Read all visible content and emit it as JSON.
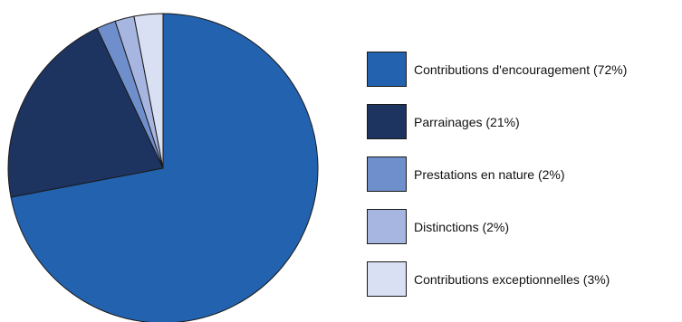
{
  "chart_data": {
    "type": "pie",
    "title": "",
    "series": [
      {
        "values": [
          72,
          21,
          2,
          2,
          3
        ]
      }
    ],
    "categories": [
      "Contributions d'encouragement",
      "Parrainages",
      "Prestations en nature",
      "Distinctions",
      "Contributions exceptionnelles"
    ],
    "colors": [
      "#2262ae",
      "#1e3460",
      "#6f8fcc",
      "#a6b6e1",
      "#d9e0f3"
    ],
    "legend": {
      "placement": "right",
      "entries": [
        "Contributions d'encouragement (72%)",
        "Parrainages (21%)",
        "Prestations en nature (2%)",
        "Distinctions (2%)",
        "Contributions exceptionnelles (3%)"
      ]
    }
  }
}
